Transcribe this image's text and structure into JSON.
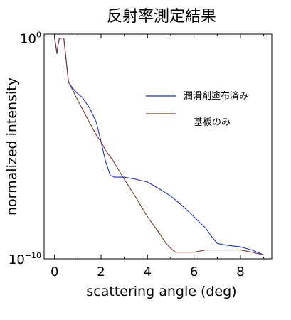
{
  "chart_data": {
    "type": "line",
    "title": "反射率測定結果",
    "xlabel": "scattering angle (deg)",
    "ylabel": "normalized intensity",
    "y_scale": "log",
    "xlim": [
      -0.45,
      9.35
    ],
    "ylim": [
      1e-10,
      1.5
    ],
    "x_ticks": [
      0,
      2,
      4,
      6,
      8
    ],
    "x_tick_labels": [
      "0",
      "2",
      "4",
      "6",
      "8"
    ],
    "y_ticks": [
      1,
      1e-10
    ],
    "y_tick_labels": [
      {
        "base": "10",
        "exp": "0"
      },
      {
        "base": "10",
        "exp": "−10"
      }
    ],
    "legend_position": "right",
    "grid": false,
    "series": [
      {
        "name": "潤滑剤塗布済み",
        "color": "#1f2fd0",
        "x": [
          0.0,
          0.05,
          0.1,
          0.15,
          0.2,
          0.3,
          0.35,
          0.4,
          0.5,
          0.6,
          0.8,
          1.0,
          1.2,
          1.5,
          1.8,
          2.0,
          2.2,
          2.4,
          2.6,
          3.0,
          3.5,
          4.0,
          4.5,
          5.0,
          5.5,
          6.0,
          6.5,
          6.8,
          7.0,
          7.2,
          7.5,
          8.0,
          8.5,
          9.0
        ],
        "y": [
          1,
          0.5,
          0.2,
          0.5,
          0.9,
          1.0,
          1.0,
          0.9,
          0.1,
          0.01,
          0.005,
          0.003,
          0.002,
          0.0007,
          0.00015,
          2e-05,
          2.5e-06,
          6e-07,
          5e-07,
          5e-07,
          4e-07,
          3e-07,
          1.5e-07,
          7e-08,
          2.5e-08,
          8e-09,
          2.5e-09,
          9e-10,
          5e-10,
          4.5e-10,
          4e-10,
          3.5e-10,
          2.5e-10,
          1.5e-10
        ]
      },
      {
        "name": "基板のみ",
        "color": "#7a3a30",
        "x": [
          0.0,
          0.05,
          0.1,
          0.15,
          0.2,
          0.3,
          0.35,
          0.4,
          0.5,
          0.6,
          0.8,
          1.0,
          1.2,
          1.5,
          1.8,
          2.0,
          2.2,
          2.5,
          3.0,
          3.5,
          4.0,
          4.5,
          4.8,
          5.0,
          5.2,
          5.5,
          6.0,
          6.5,
          7.0,
          7.5,
          8.0,
          8.5,
          9.0
        ],
        "y": [
          1,
          0.5,
          0.2,
          0.5,
          0.9,
          1.0,
          1.0,
          0.9,
          0.1,
          0.01,
          0.004,
          0.0015,
          0.0006,
          0.00015,
          4e-05,
          2e-05,
          8e-06,
          3e-06,
          4e-07,
          6e-08,
          8e-09,
          1.5e-09,
          5e-10,
          3e-10,
          2e-10,
          2e-10,
          2e-10,
          2.5e-10,
          2.5e-10,
          2.5e-10,
          2.5e-10,
          2e-10,
          1.5e-10
        ]
      }
    ]
  }
}
